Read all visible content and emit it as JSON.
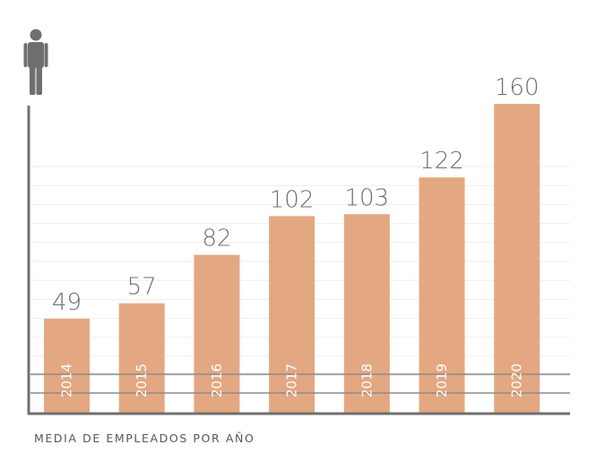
{
  "chart_data": {
    "type": "bar",
    "categories": [
      "2014",
      "2015",
      "2016",
      "2017",
      "2018",
      "2019",
      "2020"
    ],
    "values": [
      49,
      57,
      82,
      102,
      103,
      122,
      160
    ],
    "xlabel": "MEDIA DE EMPLEADOS POR AÑO",
    "ylabel": "",
    "ylim": [
      0,
      160
    ],
    "grid": true,
    "legend": "none",
    "icon": "person-icon",
    "colors": {
      "bar": "#e3a882",
      "axis": "#6f6f6f",
      "grid": "#eeeeee",
      "gridline_strong": "#8a8a8a",
      "value_text": "#6e6e6e",
      "icon": "#6f6f6f"
    }
  }
}
